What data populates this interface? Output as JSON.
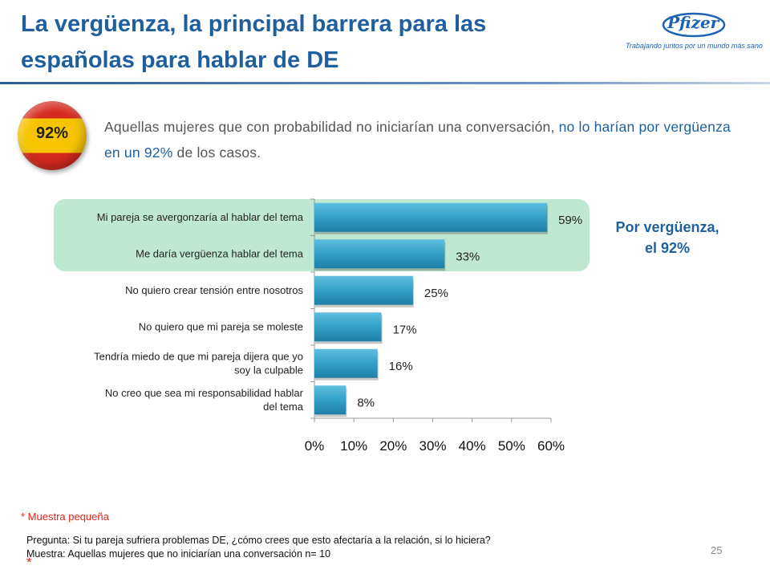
{
  "slide": {
    "title_line1": "La vergüenza, la principal barrera para las",
    "title_line2": "españolas para hablar de DE",
    "logo_text": "Pfizer",
    "logo_tagline": "Trabajando juntos por un mundo más sano",
    "badge_label": "92%",
    "intro_part1": "Aquellas mujeres que con probabilidad no iniciarían una conversación, ",
    "intro_highlight": "no lo harían por vergüenza en un 92%",
    "intro_part2": " de los casos.",
    "callout_line1": "Por vergüenza,",
    "callout_line2": "el 92%",
    "sample_note": "* Muestra pequeña",
    "question_line": "Pregunta: Si tu pareja sufriera problemas DE, ¿cómo crees que esto afectaría a la relación, si lo hiciera?",
    "sample_line": "Muestra: Aquellas mujeres que no iniciarían una conversación n= 10",
    "sample_asterisk": "*",
    "page_number": "25",
    "colors": {
      "title": "#1f5f9f",
      "bar": "#31a0c8",
      "highlight": "#bfe8d2",
      "flag_red": "#d42a1e",
      "flag_yellow": "#f6c400",
      "note_red": "#e2231a"
    }
  },
  "chart_data": {
    "type": "bar",
    "orientation": "horizontal",
    "categories": [
      [
        "Mi pareja se avergonzaría al hablar del tema"
      ],
      [
        "Me daría vergüenza hablar del tema"
      ],
      [
        "No quiero crear tensión entre nosotros"
      ],
      [
        "No quiero que mi pareja se moleste"
      ],
      [
        "Tendría miedo de que mi pareja dijera que yo",
        "soy la culpable"
      ],
      [
        "No creo que sea mi responsabilidad hablar",
        "del tema"
      ]
    ],
    "values": [
      59,
      33,
      25,
      17,
      16,
      8
    ],
    "value_labels": [
      "59%",
      "33%",
      "25%",
      "17%",
      "16%",
      "8%"
    ],
    "highlighted_categories": [
      0,
      1
    ],
    "xlim": [
      0,
      60
    ],
    "xticks": [
      0,
      10,
      20,
      30,
      40,
      50,
      60
    ],
    "xtick_labels": [
      "0%",
      "10%",
      "20%",
      "30%",
      "40%",
      "50%",
      "60%"
    ],
    "grid": false,
    "legend": "none"
  }
}
